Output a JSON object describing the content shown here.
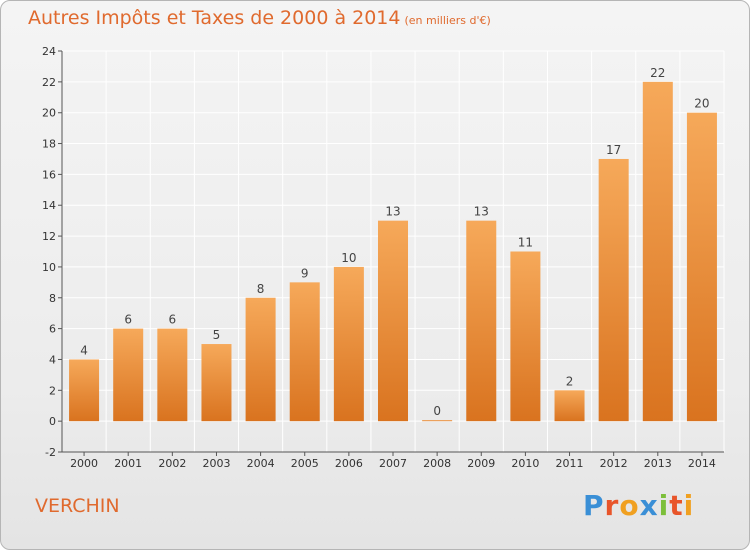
{
  "header": {
    "title": "Autres Impôts et Taxes de 2000 à 2014",
    "subtitle": "(en milliers d'€)"
  },
  "footer": {
    "commune": "VERCHIN",
    "logo_letters": [
      "P",
      "r",
      "o",
      "x",
      "i",
      "t",
      "i"
    ]
  },
  "colors": {
    "title": "#e06a2e",
    "bar_top": "#f6a95a",
    "bar_bottom": "#d9731f",
    "grid": "#ffffff",
    "logo": [
      "#3a8fd6",
      "#e8552a",
      "#f0a020",
      "#3a8fd6",
      "#7cbf3a",
      "#e8552a",
      "#f0a020"
    ]
  },
  "chart_data": {
    "type": "bar",
    "title": "Autres Impôts et Taxes de 2000 à 2014",
    "subtitle": "(en milliers d'€)",
    "xlabel": "",
    "ylabel": "",
    "categories": [
      "2000",
      "2001",
      "2002",
      "2003",
      "2004",
      "2005",
      "2006",
      "2007",
      "2008",
      "2009",
      "2010",
      "2011",
      "2012",
      "2013",
      "2014"
    ],
    "values": [
      4,
      6,
      6,
      5,
      8,
      9,
      10,
      13,
      0,
      13,
      11,
      2,
      17,
      22,
      20
    ],
    "ylim": [
      -2,
      24
    ],
    "yticks": [
      -2,
      0,
      2,
      4,
      6,
      8,
      10,
      12,
      14,
      16,
      18,
      20,
      22,
      24
    ],
    "grid": true,
    "legend": "none"
  }
}
